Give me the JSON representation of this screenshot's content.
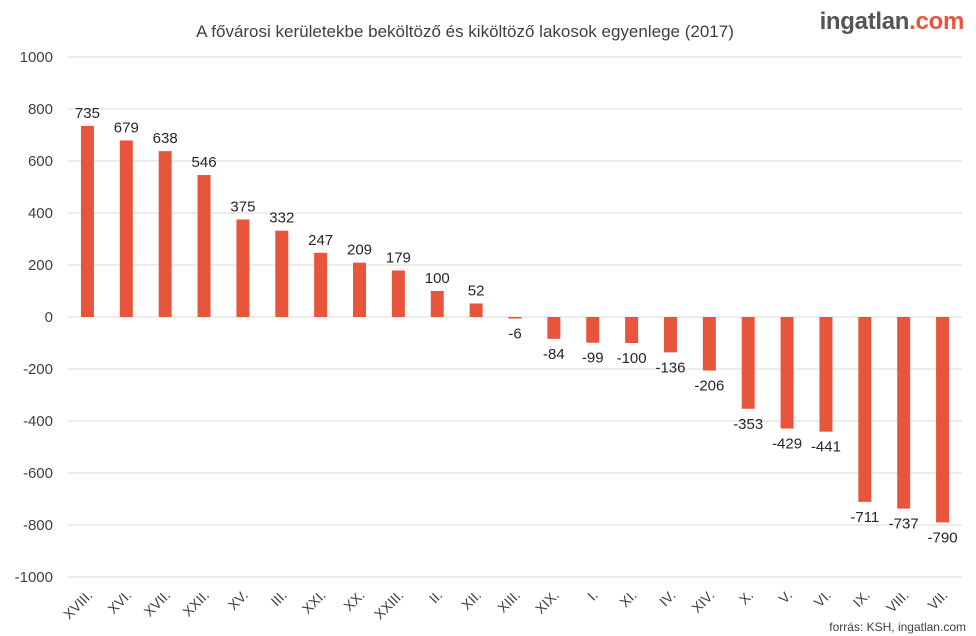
{
  "brand": {
    "main": "ingatlan",
    "accent": ".com"
  },
  "source": "forrás: KSH, ingatlan.com",
  "colors": {
    "bar": "#e8553d",
    "grid": "#d9d9d9",
    "text": "#404040"
  },
  "chart_data": {
    "type": "bar",
    "title": "A fővárosi kerületekbe beköltöző és kiköltöző lakosok egyenlege  (2017)",
    "xlabel": "",
    "ylabel": "",
    "ylim": [
      -1000,
      1000
    ],
    "yticks": [
      "1000",
      "800",
      "600",
      "400",
      "200",
      "0",
      "-200",
      "-400",
      "-600",
      "-800",
      "-1000"
    ],
    "grid": true,
    "categories": [
      "XVIII.",
      "XVI.",
      "XVII.",
      "XXII.",
      "XV.",
      "III.",
      "XXI.",
      "XX.",
      "XXIII.",
      "II.",
      "XII.",
      "XIII.",
      "XIX.",
      "I.",
      "XI.",
      "IV.",
      "XIV.",
      "X.",
      "V.",
      "VI.",
      "IX.",
      "VIII.",
      "VII."
    ],
    "values": [
      735,
      679,
      638,
      546,
      375,
      332,
      247,
      209,
      179,
      100,
      52,
      -6,
      -84,
      -99,
      -100,
      -136,
      -206,
      -353,
      -429,
      -441,
      -711,
      -737,
      -790
    ]
  }
}
